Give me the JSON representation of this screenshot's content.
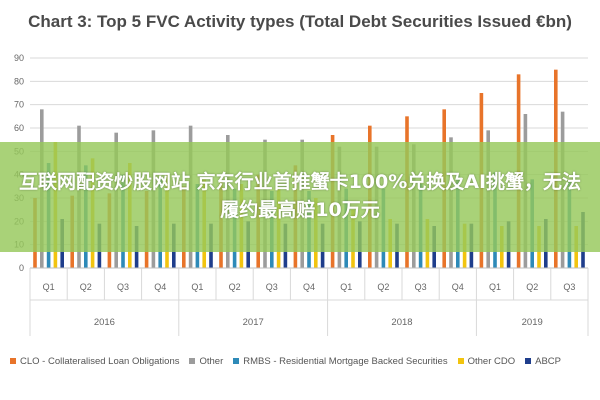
{
  "chart_data": {
    "type": "bar",
    "title": "Chart 3: Top 5 FVC Activity types (Total Debt Securities Issued €bn)",
    "ylim": [
      0,
      90
    ],
    "yticks": [
      0,
      10,
      20,
      30,
      40,
      50,
      60,
      70,
      80,
      90
    ],
    "grid": true,
    "legend_position": "bottom",
    "categories": [
      "Q1",
      "Q2",
      "Q3",
      "Q4",
      "Q1",
      "Q2",
      "Q3",
      "Q4",
      "Q1",
      "Q2",
      "Q3",
      "Q4",
      "Q1",
      "Q2",
      "Q3"
    ],
    "years": [
      {
        "label": "2016",
        "span": 4
      },
      {
        "label": "2017",
        "span": 4
      },
      {
        "label": "2018",
        "span": 4
      },
      {
        "label": "2019",
        "span": 3
      }
    ],
    "series": [
      {
        "name": "CLO - Collateralised Loan Obligations",
        "color": "#e8742a",
        "values": [
          30,
          31,
          32,
          33,
          35,
          37,
          40,
          44,
          57,
          61,
          65,
          68,
          75,
          83,
          85
        ]
      },
      {
        "name": "Other",
        "color": "#9c9c9c",
        "values": [
          68,
          61,
          58,
          59,
          61,
          57,
          55,
          55,
          52,
          52,
          53,
          56,
          59,
          66,
          67
        ]
      },
      {
        "name": "RMBS - Residential Mortgage Backed Securities",
        "color": "#2e8ab8",
        "values": [
          45,
          44,
          40,
          38,
          36,
          34,
          33,
          33,
          34,
          34,
          36,
          40,
          41,
          38,
          37
        ]
      },
      {
        "name": "Other CDO",
        "color": "#f2c40f",
        "values": [
          54,
          47,
          45,
          40,
          38,
          36,
          34,
          30,
          25,
          21,
          21,
          19,
          18,
          18,
          18
        ]
      },
      {
        "name": "ABCP",
        "color": "#1f3e8c",
        "values": [
          21,
          19,
          18,
          19,
          19,
          20,
          19,
          19,
          20,
          19,
          18,
          19,
          20,
          21,
          24
        ]
      }
    ]
  },
  "overlay": {
    "banner_text": "互联网配资炒股网站 京东行业首推蟹卡100%兑换及AI挑蟹，无法履约最高赔10万元"
  }
}
